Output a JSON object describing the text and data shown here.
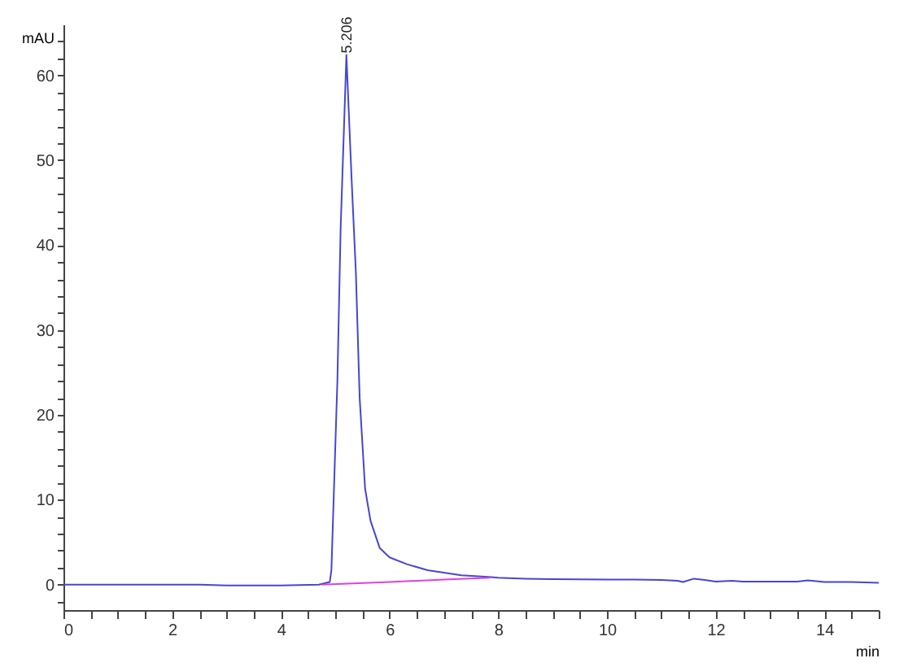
{
  "chart_data": {
    "type": "line",
    "xlabel": "min",
    "ylabel": "mAU",
    "xlim": [
      0,
      15
    ],
    "ylim": [
      -3,
      66
    ],
    "xticks": [
      0,
      {
        "value": 0.5,
        "label": null
      },
      {
        "value": 1,
        "label": null
      },
      {
        "value": 1.5,
        "label": null
      },
      2,
      {
        "value": 2.5,
        "label": null
      },
      {
        "value": 3,
        "label": null
      },
      {
        "value": 3.5,
        "label": null
      },
      4,
      {
        "value": 4.5,
        "label": null
      },
      {
        "value": 5,
        "label": null
      },
      {
        "value": 5.5,
        "label": null
      },
      6,
      {
        "value": 6.5,
        "label": null
      },
      {
        "value": 7,
        "label": null
      },
      {
        "value": 7.5,
        "label": null
      },
      8,
      {
        "value": 8.5,
        "label": null
      },
      {
        "value": 9,
        "label": null
      },
      {
        "value": 9.5,
        "label": null
      },
      10,
      {
        "value": 10.5,
        "label": null
      },
      {
        "value": 11,
        "label": null
      },
      {
        "value": 11.5,
        "label": null
      },
      12,
      {
        "value": 12.5,
        "label": null
      },
      {
        "value": 13,
        "label": null
      },
      {
        "value": 13.5,
        "label": null
      },
      14,
      {
        "value": 14.5,
        "label": null
      },
      {
        "value": 15,
        "label": null
      }
    ],
    "yticks": [
      {
        "value": -2,
        "label": null
      },
      0,
      {
        "value": 2,
        "label": null
      },
      {
        "value": 4,
        "label": null
      },
      {
        "value": 6,
        "label": null
      },
      {
        "value": 8,
        "label": null
      },
      10,
      {
        "value": 12,
        "label": null
      },
      {
        "value": 14,
        "label": null
      },
      {
        "value": 16,
        "label": null
      },
      {
        "value": 18,
        "label": null
      },
      20,
      {
        "value": 22,
        "label": null
      },
      {
        "value": 24,
        "label": null
      },
      {
        "value": 26,
        "label": null
      },
      {
        "value": 28,
        "label": null
      },
      30,
      {
        "value": 32,
        "label": null
      },
      {
        "value": 34,
        "label": null
      },
      {
        "value": 36,
        "label": null
      },
      {
        "value": 38,
        "label": null
      },
      40,
      {
        "value": 42,
        "label": null
      },
      {
        "value": 44,
        "label": null
      },
      {
        "value": 46,
        "label": null
      },
      {
        "value": 48,
        "label": null
      },
      50,
      {
        "value": 52,
        "label": null
      },
      {
        "value": 54,
        "label": null
      },
      {
        "value": 56,
        "label": null
      },
      {
        "value": 58,
        "label": null
      },
      60,
      {
        "value": 62,
        "label": null
      },
      {
        "value": 64,
        "label": null
      }
    ],
    "grid": false,
    "marker": "none",
    "line_style": "solid",
    "annotations": [
      {
        "text": "5.206",
        "x": 5.206,
        "y": 62.4
      }
    ],
    "series": [
      {
        "color": "#4646d2",
        "x": [
          0,
          1,
          2,
          2.5,
          3,
          4,
          4.7,
          4.9,
          4.93,
          5.04,
          5.1,
          5.206,
          5.3,
          5.38,
          5.45,
          5.55,
          5.65,
          5.82,
          6.0,
          6.32,
          6.7,
          7.32,
          7.82,
          8,
          8.5,
          9,
          10,
          10.5,
          11,
          11.3,
          11.4,
          11.6,
          11.8,
          12,
          12.3,
          12.5,
          13,
          13.5,
          13.7,
          14,
          14.5,
          15
        ],
        "values": [
          0,
          0,
          0,
          0,
          -0.1,
          -0.1,
          0,
          0.3,
          1.7,
          24,
          42,
          62.4,
          48,
          36.8,
          22,
          11.3,
          7.5,
          4.3,
          3.2,
          2.4,
          1.7,
          1.1,
          0.9,
          0.8,
          0.7,
          0.65,
          0.6,
          0.6,
          0.55,
          0.45,
          0.3,
          0.7,
          0.55,
          0.35,
          0.45,
          0.35,
          0.35,
          0.35,
          0.5,
          0.3,
          0.3,
          0.2
        ]
      },
      {
        "color": "#e040e0",
        "x": [
          4.75,
          6,
          7,
          7.85
        ],
        "values": [
          0,
          0.3,
          0.6,
          0.8
        ]
      }
    ]
  }
}
